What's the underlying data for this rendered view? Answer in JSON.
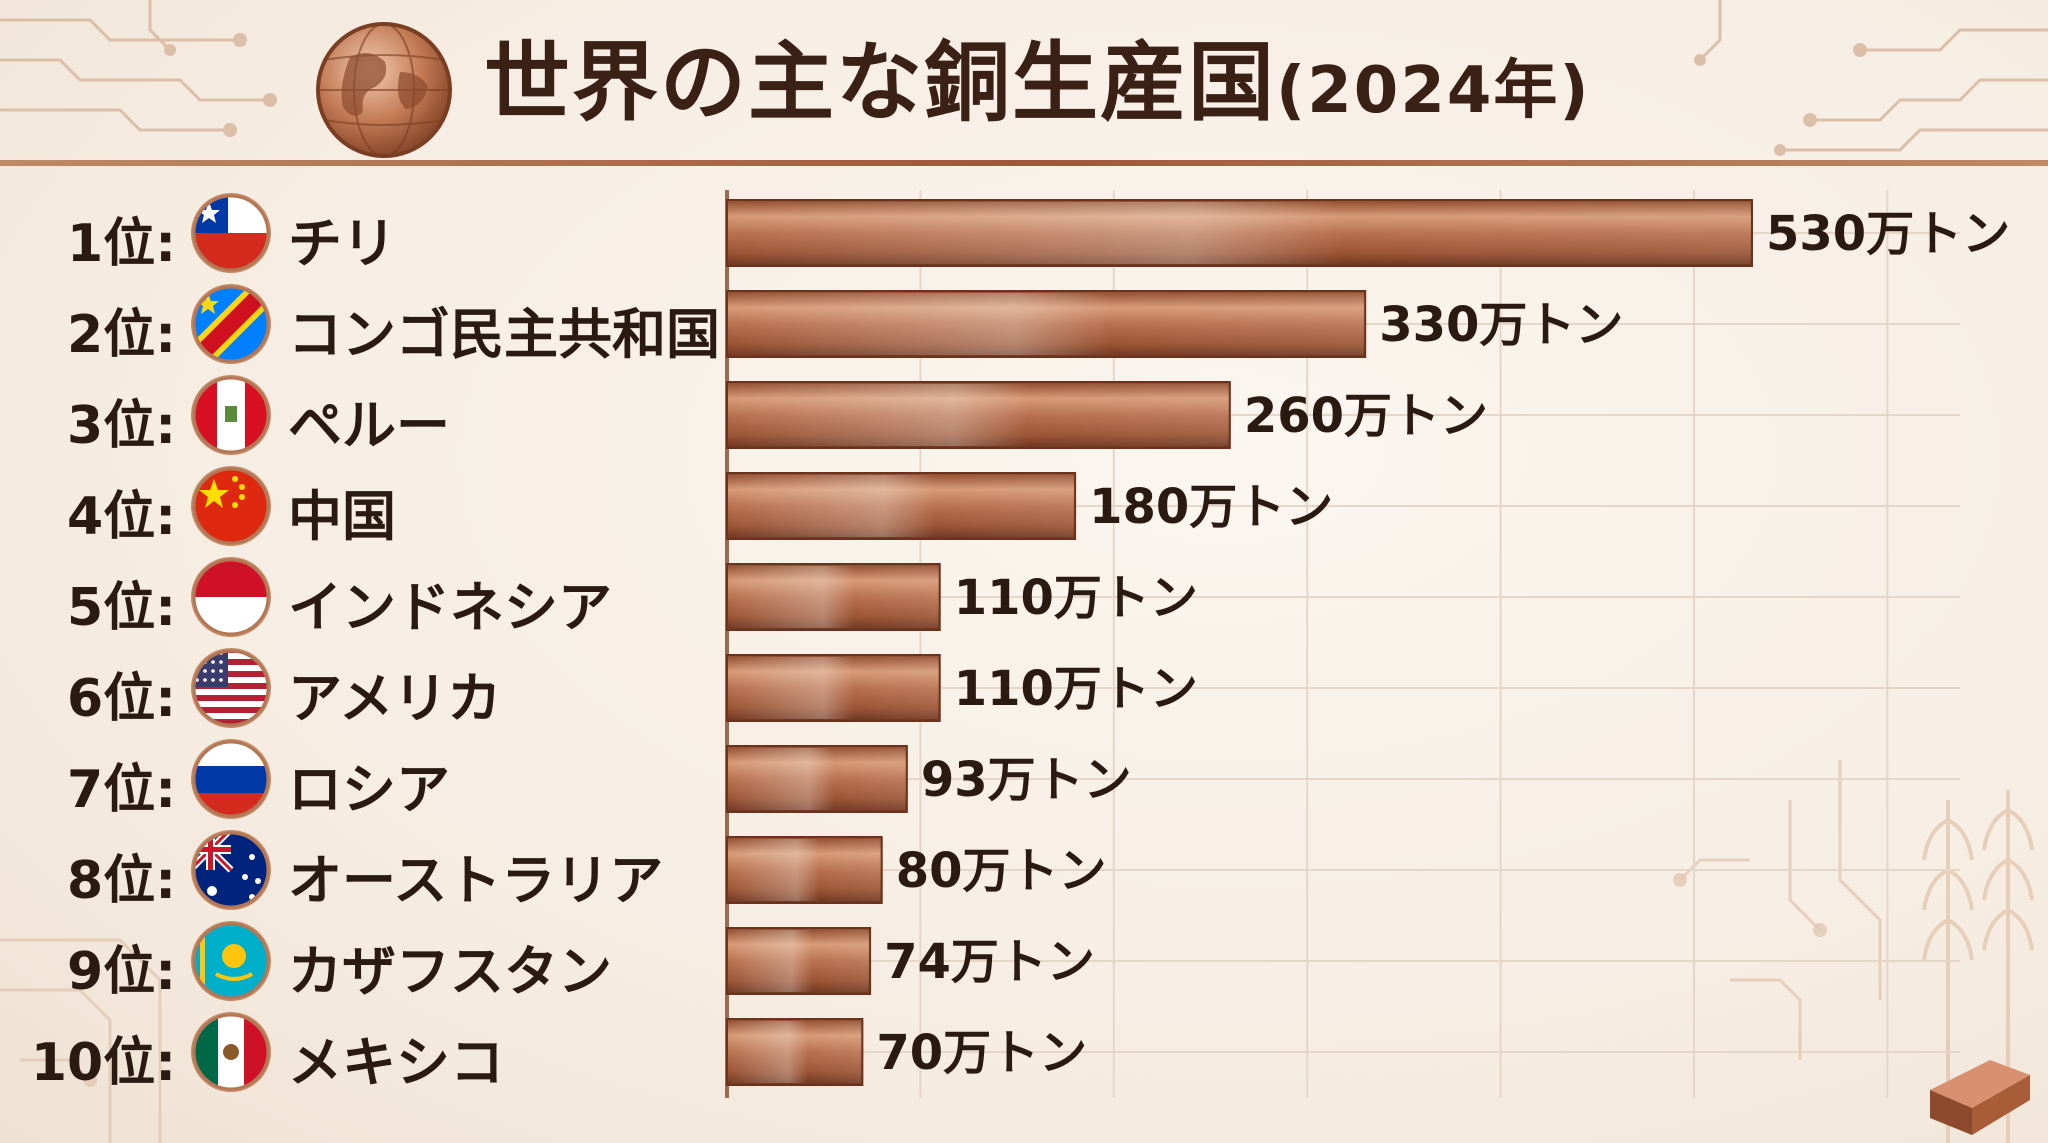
{
  "title": "世界の主な銅生産国",
  "title_sub": "(2024年)",
  "rank_suffix": "位:",
  "chart_data": {
    "type": "bar",
    "orientation": "horizontal",
    "title": "世界の主な銅生産国(2024年)",
    "unit": "万トン",
    "categories": [
      "チリ",
      "コンゴ民主共和国",
      "ペルー",
      "中国",
      "インドネシア",
      "アメリカ",
      "ロシア",
      "オーストラリア",
      "カザフスタン",
      "メキシコ"
    ],
    "ranks": [
      "1位:",
      "2位:",
      "3位:",
      "4位:",
      "5位:",
      "6位:",
      "7位:",
      "8位:",
      "9位:",
      "10位:"
    ],
    "values": [
      530,
      330,
      260,
      180,
      110,
      110,
      93,
      80,
      74,
      70
    ],
    "value_labels": [
      "530万トン",
      "330万トン",
      "260万トン",
      "180万トン",
      "110万トン",
      "110万トン",
      "93万トン",
      "80万トン",
      "74万トン",
      "70万トン"
    ],
    "flags": [
      "chile",
      "dr-congo",
      "peru",
      "china",
      "indonesia",
      "usa",
      "russia",
      "australia",
      "kazakhstan",
      "mexico"
    ],
    "bar_color": "#b4704a",
    "grid": true
  }
}
